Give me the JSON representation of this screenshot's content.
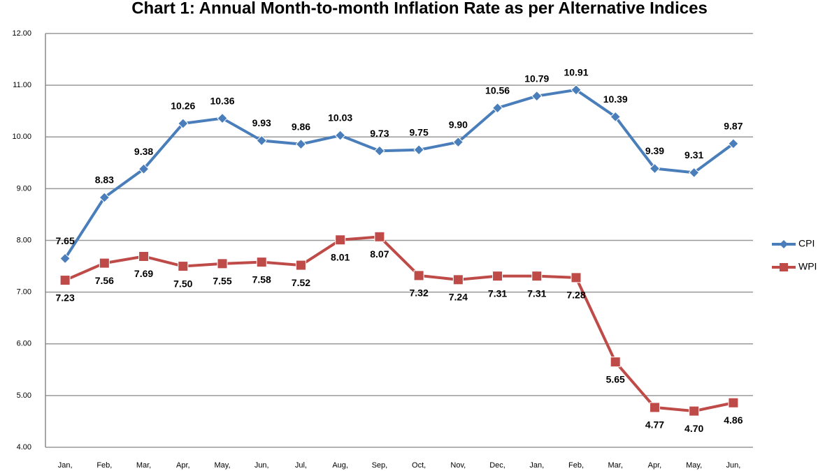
{
  "chart_data": {
    "type": "line",
    "title": "Chart 1: Annual Month-to-month Inflation Rate as per Alternative Indices",
    "categories": [
      "Jan,",
      "Feb,",
      "Mar,",
      "Apr,",
      "May,",
      "Jun,",
      "Jul,",
      "Aug,",
      "Sep,",
      "Oct,",
      "Nov,",
      "Dec,",
      "Jan,",
      "Feb,",
      "Mar,",
      "Apr,",
      "May,",
      "Jun,"
    ],
    "series": [
      {
        "name": "CPI",
        "color": "#4a7ebb",
        "marker": "diamond",
        "values": [
          7.65,
          8.83,
          9.38,
          10.26,
          10.36,
          9.93,
          9.86,
          10.03,
          9.73,
          9.75,
          9.9,
          10.56,
          10.79,
          10.91,
          10.39,
          9.39,
          9.31,
          9.87
        ],
        "value_labels": [
          "7.65",
          "8.83",
          "9.38",
          "10.26",
          "10.36",
          "9.93",
          "9.86",
          "10.03",
          "9.73",
          "9.75",
          "9.90",
          "10.56",
          "10.79",
          "10.91",
          "10.39",
          "9.39",
          "9.31",
          "9.87"
        ]
      },
      {
        "name": "WPI",
        "color": "#be4b48",
        "marker": "square",
        "values": [
          7.23,
          7.56,
          7.69,
          7.5,
          7.55,
          7.58,
          7.52,
          8.01,
          8.07,
          7.32,
          7.24,
          7.31,
          7.31,
          7.28,
          5.65,
          4.77,
          4.7,
          4.86
        ],
        "value_labels": [
          "7.23",
          "7.56",
          "7.69",
          "7.50",
          "7.55",
          "7.58",
          "7.52",
          "8.01",
          "8.07",
          "7.32",
          "7.24",
          "7.31",
          "7.31",
          "7.28",
          "5.65",
          "4.77",
          "4.70",
          "4.86"
        ]
      }
    ],
    "ylim": [
      4,
      12
    ],
    "yticks": [
      {
        "value": 4,
        "label": "4.00"
      },
      {
        "value": 5,
        "label": "5.00"
      },
      {
        "value": 6,
        "label": "6.00"
      },
      {
        "value": 7,
        "label": "7.00"
      },
      {
        "value": 8,
        "label": "8.00"
      },
      {
        "value": 9,
        "label": "9.00"
      },
      {
        "value": 10,
        "label": "10.00"
      },
      {
        "value": 11,
        "label": "11.00"
      },
      {
        "value": 12,
        "label": "12.00"
      }
    ],
    "grid": true,
    "legend": "right"
  }
}
